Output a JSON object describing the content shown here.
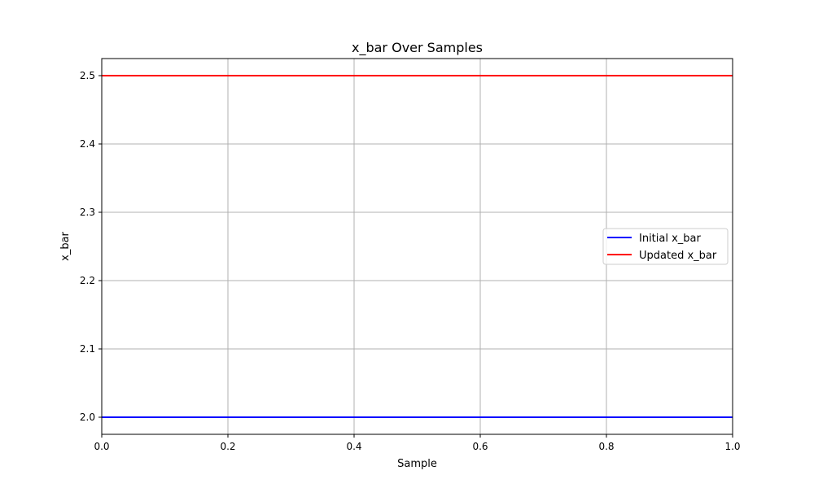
{
  "chart_data": {
    "type": "line",
    "title": "x_bar Over Samples",
    "xlabel": "Sample",
    "ylabel": "x_bar",
    "xlim": [
      0.0,
      1.0
    ],
    "ylim": [
      1.975,
      2.525
    ],
    "xticks": [
      "0.0",
      "0.2",
      "0.4",
      "0.6",
      "0.8",
      "1.0"
    ],
    "yticks": [
      "2.0",
      "2.1",
      "2.2",
      "2.3",
      "2.4",
      "2.5"
    ],
    "grid": true,
    "legend_position": "center-right",
    "series": [
      {
        "name": "Initial x_bar",
        "color": "#0000ff",
        "x": [
          0.0,
          1.0
        ],
        "y": [
          2.0,
          2.0
        ]
      },
      {
        "name": "Updated x_bar",
        "color": "#ff0000",
        "x": [
          0.0,
          1.0
        ],
        "y": [
          2.5,
          2.5
        ]
      }
    ]
  }
}
